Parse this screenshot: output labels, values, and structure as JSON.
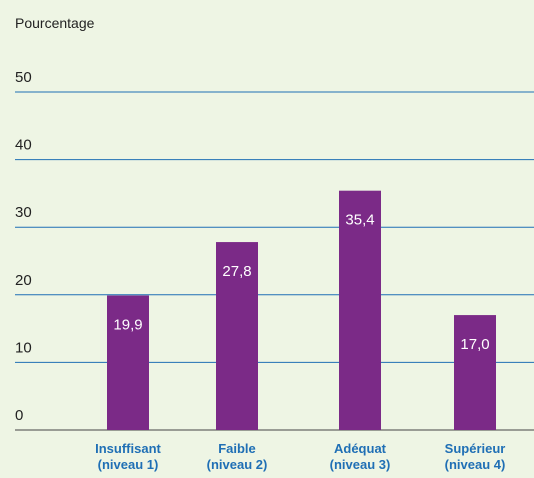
{
  "chart_data": {
    "type": "bar",
    "y_axis_label": "Pourcentage",
    "categories": [
      [
        "Insuffisant",
        "(niveau 1)"
      ],
      [
        "Faible",
        "(niveau 2)"
      ],
      [
        "Adéquat",
        "(niveau 3)"
      ],
      [
        "Supérieur",
        "(niveau 4)"
      ]
    ],
    "values": [
      19.9,
      27.8,
      35.4,
      17.0
    ],
    "value_labels": [
      "19,9",
      "27,8",
      "35,4",
      "17,0"
    ],
    "color": "#7b2a87",
    "ylim": [
      0,
      50
    ],
    "yticks": [
      0,
      10,
      20,
      30,
      40,
      50
    ],
    "grid": true
  }
}
